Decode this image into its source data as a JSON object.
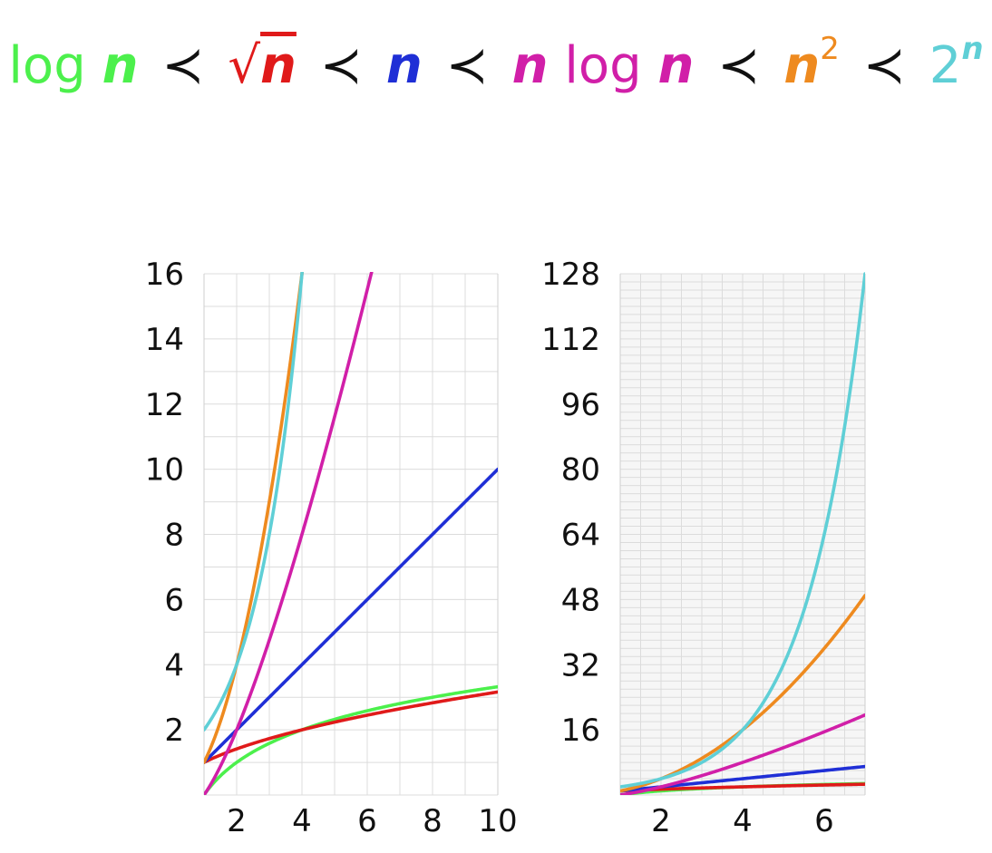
{
  "headline": {
    "terms": [
      {
        "id": "logn",
        "prefix": "log",
        "var": "n",
        "color": "#4cf04c"
      },
      {
        "id": "sqrtn",
        "prefix": "√",
        "var": "n",
        "color": "#e01a1a"
      },
      {
        "id": "n",
        "prefix": "",
        "var": "n",
        "color": "#1f2fd6"
      },
      {
        "id": "nlogn",
        "var": "n",
        "mid": "log",
        "var2": "n",
        "color": "#d11fa8"
      },
      {
        "id": "n2",
        "var": "n",
        "sup": "2",
        "color": "#ee8a1f"
      },
      {
        "id": "2n",
        "base": "2",
        "sup": "n",
        "color": "#5fcfd6"
      }
    ],
    "relation_symbol": "≺"
  },
  "chart_data": [
    {
      "type": "line",
      "title": "",
      "xlabel": "",
      "ylabel": "",
      "xlim": [
        1,
        10
      ],
      "ylim": [
        0,
        16
      ],
      "xticks": [
        2,
        4,
        6,
        8,
        10
      ],
      "yticks": [
        2,
        4,
        6,
        8,
        10,
        12,
        14,
        16
      ],
      "grid": true,
      "series": [
        {
          "fn": "log2",
          "color": "#4cf04c"
        },
        {
          "fn": "sqrt",
          "color": "#e01a1a"
        },
        {
          "fn": "n",
          "color": "#1f2fd6"
        },
        {
          "fn": "nlog2",
          "color": "#d11fa8"
        },
        {
          "fn": "n2",
          "color": "#ee8a1f"
        },
        {
          "fn": "pow2",
          "color": "#5fcfd6"
        }
      ]
    },
    {
      "type": "line",
      "title": "",
      "xlabel": "",
      "ylabel": "",
      "xlim": [
        1,
        7
      ],
      "ylim": [
        0,
        128
      ],
      "xticks": [
        2,
        4,
        6
      ],
      "yticks": [
        16,
        32,
        48,
        64,
        80,
        96,
        112,
        128
      ],
      "grid": true,
      "series": [
        {
          "fn": "log2",
          "color": "#4cf04c"
        },
        {
          "fn": "sqrt",
          "color": "#e01a1a"
        },
        {
          "fn": "n",
          "color": "#1f2fd6"
        },
        {
          "fn": "nlog2",
          "color": "#d11fa8"
        },
        {
          "fn": "n2",
          "color": "#ee8a1f"
        },
        {
          "fn": "pow2",
          "color": "#5fcfd6"
        }
      ]
    }
  ]
}
